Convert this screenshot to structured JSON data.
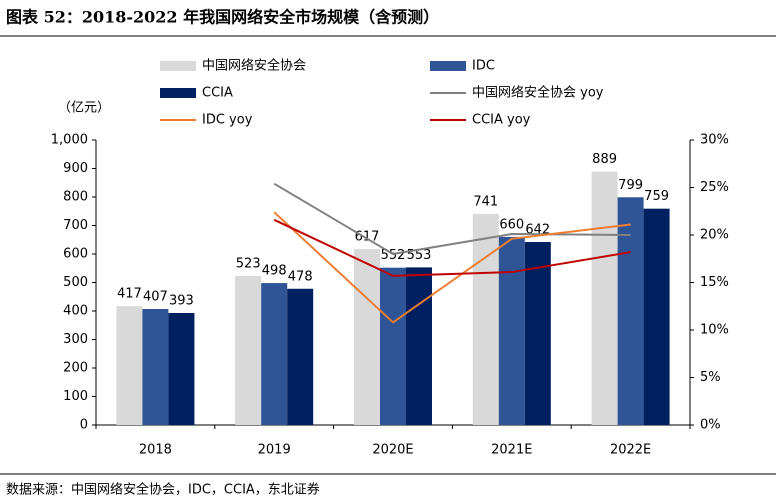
{
  "chart_data": {
    "type": "bar",
    "title": "图表 52：2018-2022 年我国网络安全市场规模（含预测）",
    "ylabel": "（亿元）",
    "source": "数据来源：中国网络安全协会，IDC，CCIA，东北证券",
    "categories": [
      "2018",
      "2019",
      "2020E",
      "2021E",
      "2022E"
    ],
    "ylim": [
      0,
      1000
    ],
    "yticks": [
      0,
      100,
      200,
      300,
      400,
      500,
      600,
      700,
      800,
      900,
      {
        "value": 1000,
        "label": "1,000"
      }
    ],
    "y2lim": [
      0,
      30
    ],
    "y2ticks": [
      {
        "value": 0,
        "label": "0%"
      },
      {
        "value": 5,
        "label": "5%"
      },
      {
        "value": 10,
        "label": "10%"
      },
      {
        "value": 15,
        "label": "15%"
      },
      {
        "value": 20,
        "label": "20%"
      },
      {
        "value": 25,
        "label": "25%"
      },
      {
        "value": 30,
        "label": "30%"
      }
    ],
    "grid": false,
    "series": [
      {
        "name": "中国网络安全协会",
        "type": "bar",
        "color": "#d9d9d9",
        "values": [
          417,
          523,
          617,
          741,
          889
        ]
      },
      {
        "name": "IDC",
        "type": "bar",
        "color": "#2f5597",
        "values": [
          407,
          498,
          552,
          660,
          799
        ]
      },
      {
        "name": "CCIA",
        "type": "bar",
        "color": "#002060",
        "values": [
          393,
          478,
          553,
          642,
          759
        ]
      },
      {
        "name": "中国网络安全协会 yoy",
        "type": "line",
        "axis": "y2",
        "color": "#808080",
        "values": [
          null,
          25.4,
          18.0,
          20.1,
          20.0
        ]
      },
      {
        "name": "IDC yoy",
        "type": "line",
        "axis": "y2",
        "color": "#ed7d31",
        "values": [
          null,
          22.4,
          10.8,
          19.6,
          21.1
        ]
      },
      {
        "name": "CCIA yoy",
        "type": "line",
        "axis": "y2",
        "color": "#c00000",
        "values": [
          null,
          21.6,
          15.7,
          16.1,
          18.2
        ]
      }
    ]
  }
}
